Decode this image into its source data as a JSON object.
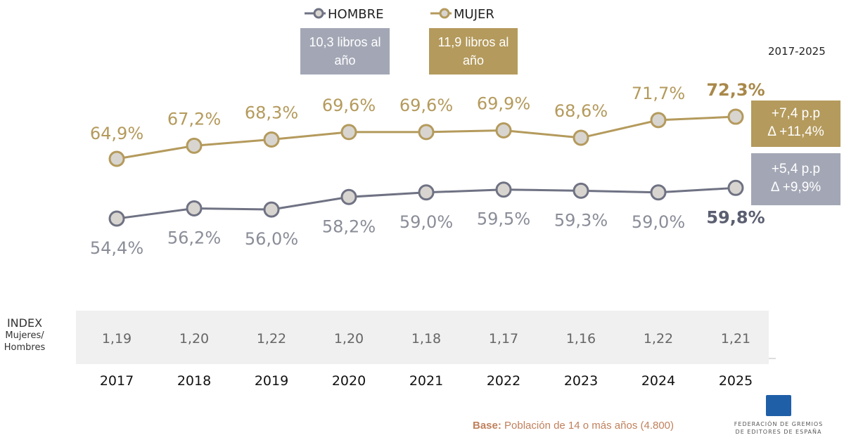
{
  "chart_data": {
    "type": "line",
    "period": "2017-2025",
    "categories": [
      "2017",
      "2018",
      "2019",
      "2020",
      "2021",
      "2022",
      "2023",
      "2024",
      "2025"
    ],
    "series": [
      {
        "name": "HOMBRE",
        "color": "#6f7283",
        "values": [
          54.4,
          56.2,
          56.0,
          58.2,
          59.0,
          59.5,
          59.3,
          59.0,
          59.8
        ],
        "labels": [
          "54,4%",
          "56,2%",
          "56,0%",
          "58,2%",
          "59,0%",
          "59,5%",
          "59,3%",
          "59,0%",
          "59,8%"
        ],
        "summary": "10,3 libros al año",
        "change": [
          "+5,4 p.p",
          "Δ +9,9%"
        ],
        "box_color": "#a3a7b5"
      },
      {
        "name": "MUJER",
        "color": "#b49a5c",
        "values": [
          64.9,
          67.2,
          68.3,
          69.6,
          69.6,
          69.9,
          68.6,
          71.7,
          72.3
        ],
        "labels": [
          "64,9%",
          "67,2%",
          "68,3%",
          "69,6%",
          "69,6%",
          "69,9%",
          "68,6%",
          "71,7%",
          "72,3%"
        ],
        "summary": "11,9 libros al año",
        "change": [
          "+7,4 p.p",
          "Δ +11,4%"
        ],
        "box_color": "#b49a5c"
      }
    ],
    "index": {
      "label": "INDEX",
      "sublabel": "Mujeres/ Hombres",
      "values": [
        "1,19",
        "1,20",
        "1,22",
        "1,20",
        "1,18",
        "1,17",
        "1,16",
        "1,22",
        "1,21"
      ]
    }
  },
  "footer": {
    "base_label": "Base:",
    "base_text": " Población de 14 o más años (4.800)",
    "logo_text": "FEDERACIÓN DE GREMIOS DE EDITORES DE ESPAÑA"
  }
}
